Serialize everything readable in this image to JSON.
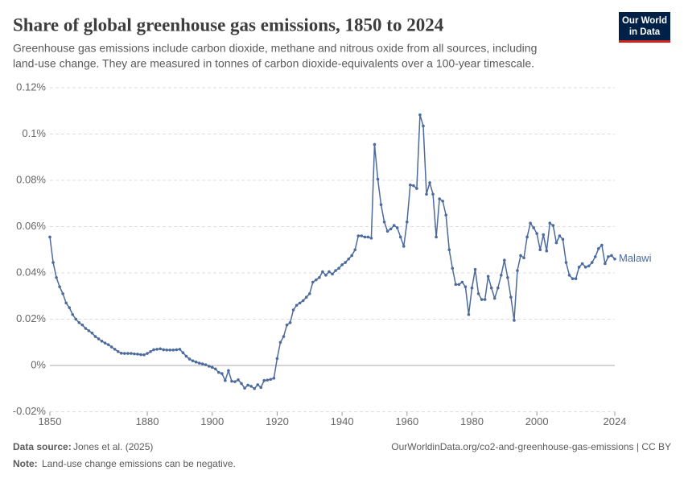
{
  "chart_data": {
    "type": "line",
    "title": "Share of global greenhouse gas emissions, 1850 to 2024",
    "subtitle": [
      "Greenhouse gas emissions include carbon dioxide, methane and nitrous oxide from all sources, including",
      "land-use change. They are measured in tonnes of carbon dioxide-equivalents over a 100-year timescale."
    ],
    "logo": [
      "Our World",
      "in Data"
    ],
    "source_label": "Data source:",
    "source": "Jones et al. (2025)",
    "url": "OurWorldinData.org/co2-and-greenhouse-gas-emissions | CC BY",
    "note_label": "Note:",
    "note": "Land-use change emissions can be negative.",
    "xlim": [
      1850,
      2024
    ],
    "xticks": [
      1850,
      1880,
      1900,
      1920,
      1940,
      1960,
      1980,
      2000,
      2024
    ],
    "ylim": [
      -0.02,
      0.12
    ],
    "yticks": [
      {
        "value": -0.02,
        "label": "-0.02%"
      },
      {
        "value": 0,
        "label": "0%"
      },
      {
        "value": 0.02,
        "label": "0.02%"
      },
      {
        "value": 0.04,
        "label": "0.04%"
      },
      {
        "value": 0.06,
        "label": "0.06%"
      },
      {
        "value": 0.08,
        "label": "0.08%"
      },
      {
        "value": 0.1,
        "label": "0.1%"
      },
      {
        "value": 0.12,
        "label": "0.12%"
      }
    ],
    "grid": true,
    "x": [
      1850,
      1851,
      1852,
      1853,
      1854,
      1855,
      1856,
      1857,
      1858,
      1859,
      1860,
      1861,
      1862,
      1863,
      1864,
      1865,
      1866,
      1867,
      1868,
      1869,
      1870,
      1871,
      1872,
      1873,
      1874,
      1875,
      1876,
      1877,
      1878,
      1879,
      1880,
      1881,
      1882,
      1883,
      1884,
      1885,
      1886,
      1887,
      1888,
      1889,
      1890,
      1891,
      1892,
      1893,
      1894,
      1895,
      1896,
      1897,
      1898,
      1899,
      1900,
      1901,
      1902,
      1903,
      1904,
      1905,
      1906,
      1907,
      1908,
      1909,
      1910,
      1911,
      1912,
      1913,
      1914,
      1915,
      1916,
      1917,
      1918,
      1919,
      1920,
      1921,
      1922,
      1923,
      1924,
      1925,
      1926,
      1927,
      1928,
      1929,
      1930,
      1931,
      1932,
      1933,
      1934,
      1935,
      1936,
      1937,
      1938,
      1939,
      1940,
      1941,
      1942,
      1943,
      1944,
      1945,
      1946,
      1947,
      1948,
      1949,
      1950,
      1951,
      1952,
      1953,
      1954,
      1955,
      1956,
      1957,
      1958,
      1959,
      1960,
      1961,
      1962,
      1963,
      1964,
      1965,
      1966,
      1967,
      1968,
      1969,
      1970,
      1971,
      1972,
      1973,
      1974,
      1975,
      1976,
      1977,
      1978,
      1979,
      1980,
      1981,
      1982,
      1983,
      1984,
      1985,
      1986,
      1987,
      1988,
      1989,
      1990,
      1991,
      1992,
      1993,
      1994,
      1995,
      1996,
      1997,
      1998,
      1999,
      2000,
      2001,
      2002,
      2003,
      2004,
      2005,
      2006,
      2007,
      2008,
      2009,
      2010,
      2011,
      2012,
      2013,
      2014,
      2015,
      2016,
      2017,
      2018,
      2019,
      2020,
      2021,
      2022,
      2023,
      2024
    ],
    "series": [
      {
        "name": "Malawi",
        "color": "#4c6a9c",
        "values": [
          0.0555,
          0.0445,
          0.038,
          0.034,
          0.031,
          0.027,
          0.025,
          0.022,
          0.02,
          0.0185,
          0.0175,
          0.016,
          0.015,
          0.014,
          0.0125,
          0.0115,
          0.0105,
          0.0097,
          0.009,
          0.008,
          0.007,
          0.006,
          0.0053,
          0.0052,
          0.0052,
          0.0052,
          0.005,
          0.0049,
          0.0047,
          0.0046,
          0.0052,
          0.006,
          0.0068,
          0.007,
          0.0072,
          0.0068,
          0.0067,
          0.0067,
          0.0067,
          0.0068,
          0.007,
          0.0055,
          0.004,
          0.0028,
          0.002,
          0.0015,
          0.001,
          0.0007,
          0.0003,
          -0.0003,
          -0.0008,
          -0.0015,
          -0.003,
          -0.0035,
          -0.0065,
          -0.0022,
          -0.0068,
          -0.007,
          -0.0062,
          -0.0078,
          -0.0098,
          -0.0085,
          -0.009,
          -0.01,
          -0.0083,
          -0.0095,
          -0.0065,
          -0.0063,
          -0.006,
          -0.0055,
          0.003,
          0.01,
          0.0125,
          0.0175,
          0.0185,
          0.024,
          0.026,
          0.027,
          0.028,
          0.0295,
          0.031,
          0.036,
          0.037,
          0.038,
          0.0405,
          0.039,
          0.0405,
          0.0395,
          0.041,
          0.042,
          0.0435,
          0.0445,
          0.046,
          0.0475,
          0.05,
          0.056,
          0.056,
          0.0555,
          0.0555,
          0.055,
          0.0955,
          0.0805,
          0.0695,
          0.062,
          0.058,
          0.059,
          0.0605,
          0.0595,
          0.0555,
          0.0515,
          0.062,
          0.078,
          0.0777,
          0.0765,
          0.1083,
          0.1035,
          0.074,
          0.079,
          0.074,
          0.0555,
          0.072,
          0.071,
          0.065,
          0.05,
          0.042,
          0.035,
          0.035,
          0.036,
          0.034,
          0.022,
          0.0335,
          0.0415,
          0.031,
          0.0285,
          0.0285,
          0.0385,
          0.0335,
          0.029,
          0.0335,
          0.039,
          0.0455,
          0.038,
          0.0295,
          0.0195,
          0.041,
          0.0475,
          0.0465,
          0.0555,
          0.0615,
          0.0595,
          0.057,
          0.05,
          0.0565,
          0.0495,
          0.0615,
          0.0605,
          0.053,
          0.056,
          0.0545,
          0.0445,
          0.039,
          0.0375,
          0.0375,
          0.0425,
          0.044,
          0.0425,
          0.043,
          0.0445,
          0.047,
          0.0505,
          0.052,
          0.044,
          0.047,
          0.0475,
          0.046
        ]
      }
    ]
  }
}
